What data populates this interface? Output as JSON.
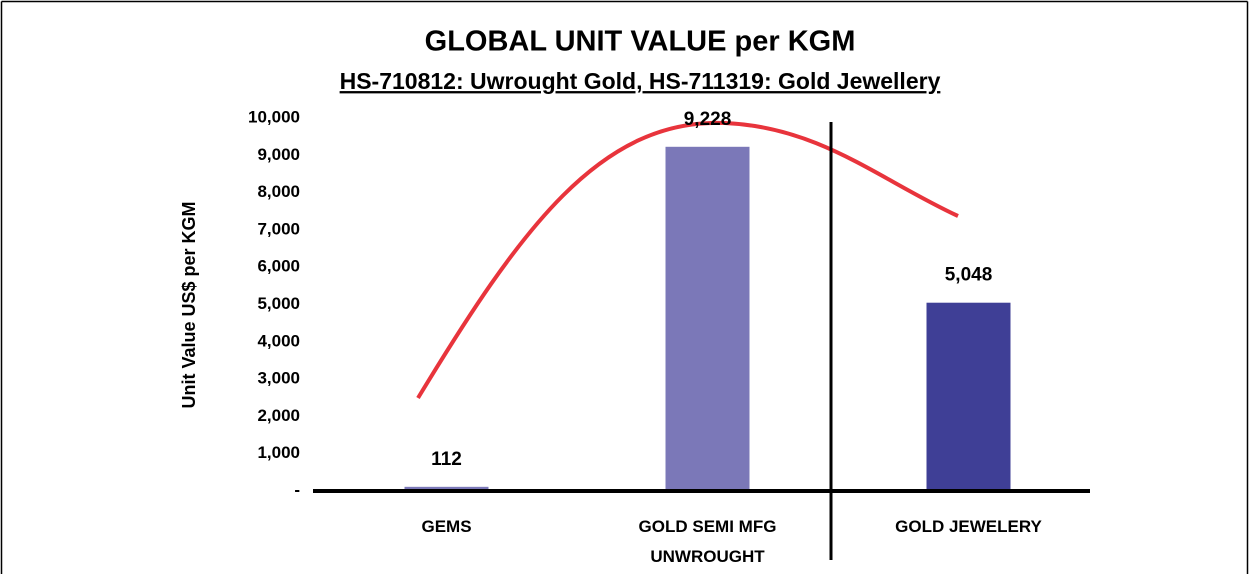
{
  "chart_data": {
    "type": "bar",
    "title": "GLOBAL UNIT VALUE per KGM",
    "subtitle": "HS-710812: Uwrought Gold, HS-711319: Gold Jewellery",
    "y_axis_label": "Unit Value US$ per KGM",
    "categories": [
      "GEMS",
      "GOLD SEMI MFG\nUNWROUGHT",
      "GOLD JEWELERY"
    ],
    "values": [
      112,
      9228,
      5048
    ],
    "value_labels": [
      "112",
      "9,228",
      "5,048"
    ],
    "colors": [
      "#7b78b8",
      "#7b78b8",
      "#3f3f96"
    ],
    "ylim": [
      0,
      10000
    ],
    "yticks": [
      {
        "value": 0,
        "label": "-"
      },
      {
        "value": 1000,
        "label": "1,000"
      },
      {
        "value": 2000,
        "label": "2,000"
      },
      {
        "value": 3000,
        "label": "3,000"
      },
      {
        "value": 4000,
        "label": "4,000"
      },
      {
        "value": 5000,
        "label": "5,000"
      },
      {
        "value": 6000,
        "label": "6,000"
      },
      {
        "value": 7000,
        "label": "7,000"
      },
      {
        "value": 8000,
        "label": "8,000"
      },
      {
        "value": 9000,
        "label": "9,000"
      },
      {
        "value": 10000,
        "label": "10,000"
      }
    ]
  }
}
